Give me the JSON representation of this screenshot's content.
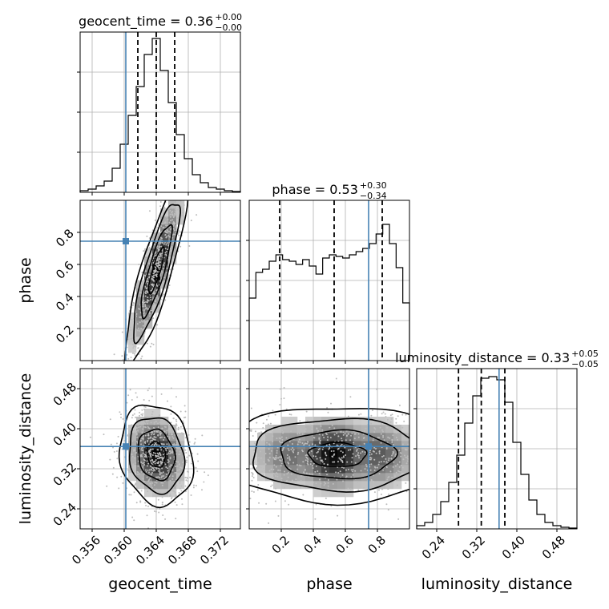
{
  "chart_data": {
    "type": "corner",
    "parameters": [
      {
        "name": "geocent_time",
        "xlabel": "geocent_time",
        "title_main": "geocent_time = 0.36",
        "title_sup": "+0.00",
        "title_sub": "−0.00",
        "range": [
          0.3545,
          0.3745
        ],
        "ticks": [
          0.356,
          0.36,
          0.364,
          0.368,
          0.372
        ],
        "tick_labels": [
          "0.356",
          "0.360",
          "0.364",
          "0.368",
          "0.372"
        ],
        "quantiles": [
          0.3617,
          0.364,
          0.3663
        ],
        "truth": 0.3602,
        "hist": [
          0.01,
          0.02,
          0.04,
          0.07,
          0.15,
          0.3,
          0.48,
          0.66,
          0.86,
          0.96,
          0.76,
          0.56,
          0.36,
          0.21,
          0.11,
          0.06,
          0.03,
          0.02,
          0.01,
          0.005
        ]
      },
      {
        "name": "phase",
        "xlabel": "phase",
        "ylabel": "phase",
        "title_main": "phase = 0.53",
        "title_sup": "+0.30",
        "title_sub": "−0.34",
        "range": [
          0.0,
          1.0
        ],
        "ticks": [
          0.2,
          0.4,
          0.6,
          0.8
        ],
        "tick_labels": [
          "0.2",
          "0.4",
          "0.6",
          "0.8"
        ],
        "quantiles": [
          0.19,
          0.53,
          0.83
        ],
        "truth": 0.745,
        "hist": [
          0.39,
          0.55,
          0.57,
          0.62,
          0.66,
          0.63,
          0.62,
          0.6,
          0.63,
          0.59,
          0.54,
          0.64,
          0.66,
          0.65,
          0.64,
          0.66,
          0.68,
          0.7,
          0.73,
          0.79,
          0.85,
          0.73,
          0.58,
          0.36
        ]
      },
      {
        "name": "luminosity_distance",
        "xlabel": "luminosity_distance",
        "ylabel": "luminosity_distance",
        "title_main": "luminosity_distance = 0.33",
        "title_sup": "+0.05",
        "title_sub": "−0.05",
        "range": [
          0.2,
          0.52
        ],
        "ticks": [
          0.24,
          0.32,
          0.4,
          0.48
        ],
        "tick_labels": [
          "0.24",
          "0.32",
          "0.40",
          "0.48"
        ],
        "quantiles": [
          0.2835,
          0.329,
          0.376
        ],
        "truth": 0.3645,
        "hist": [
          0.02,
          0.04,
          0.09,
          0.17,
          0.29,
          0.46,
          0.66,
          0.83,
          0.94,
          0.95,
          0.93,
          0.79,
          0.54,
          0.34,
          0.18,
          0.09,
          0.04,
          0.02,
          0.01,
          0.005
        ]
      }
    ],
    "axis_labels": {
      "x": [
        "geocent_time",
        "phase",
        "luminosity_distance"
      ],
      "y": [
        "phase",
        "luminosity_distance"
      ]
    },
    "truth_color": "#4682b4",
    "grid": true
  }
}
